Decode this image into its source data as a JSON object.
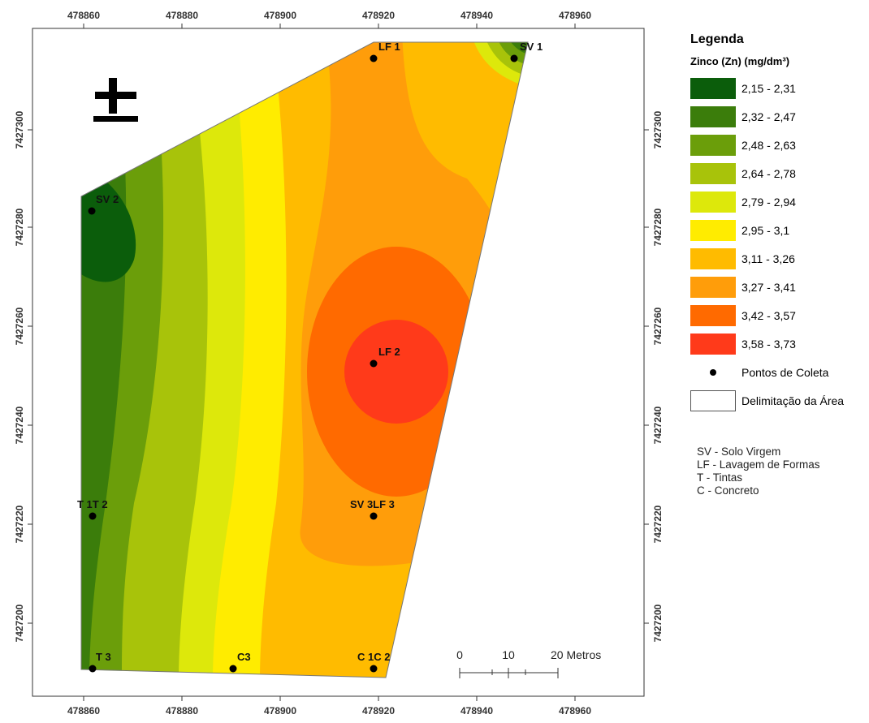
{
  "axis_top": [
    "478860",
    "478880",
    "478900",
    "478920",
    "478940",
    "478960"
  ],
  "axis_bottom": [
    "478860",
    "478880",
    "478900",
    "478920",
    "478940",
    "478960"
  ],
  "axis_left": [
    "7427300",
    "7427280",
    "7427260",
    "7427240",
    "7427220",
    "7427200"
  ],
  "axis_right": [
    "7427300",
    "7427280",
    "7427260",
    "7427240",
    "7427220",
    "7427200"
  ],
  "north_arrow_symbol": "±",
  "points": [
    {
      "label": "LF 1"
    },
    {
      "label": "SV 1"
    },
    {
      "label": "SV 2"
    },
    {
      "label": "LF 2"
    },
    {
      "label": "T 1T 2"
    },
    {
      "label": "SV 3LF 3"
    },
    {
      "label": "T 3"
    },
    {
      "label": "C3"
    },
    {
      "label": "C 1C 2"
    }
  ],
  "scale_bar": {
    "labels": [
      "0",
      "10",
      "20 Metros"
    ]
  },
  "legend": {
    "title": "Legenda",
    "subtitle": "Zinco (Zn) (mg/dm³)",
    "classes": [
      {
        "label": "2,15 - 2,31",
        "color": "#0b5d0b"
      },
      {
        "label": "2,32 - 2,47",
        "color": "#3b7d0b"
      },
      {
        "label": "2,48 - 2,63",
        "color": "#6b9e0a"
      },
      {
        "label": "2,64 - 2,78",
        "color": "#a8c30a"
      },
      {
        "label": "2,79 - 2,94",
        "color": "#dde80b"
      },
      {
        "label": "2,95 - 3,1",
        "color": "#ffec00"
      },
      {
        "label": "3,11 - 3,26",
        "color": "#ffbb00"
      },
      {
        "label": "3,27 - 3,41",
        "color": "#ff9d0a"
      },
      {
        "label": "3,42 - 3,57",
        "color": "#ff6a00"
      },
      {
        "label": "3,58 - 3,73",
        "color": "#ff3a1a"
      }
    ],
    "points_label": "Pontos de Coleta",
    "area_label": "Delimitação da Área",
    "abbreviations": [
      "SV - Solo Virgem",
      "LF - Lavagem de Formas",
      "T - Tintas",
      "C - Concreto"
    ]
  }
}
